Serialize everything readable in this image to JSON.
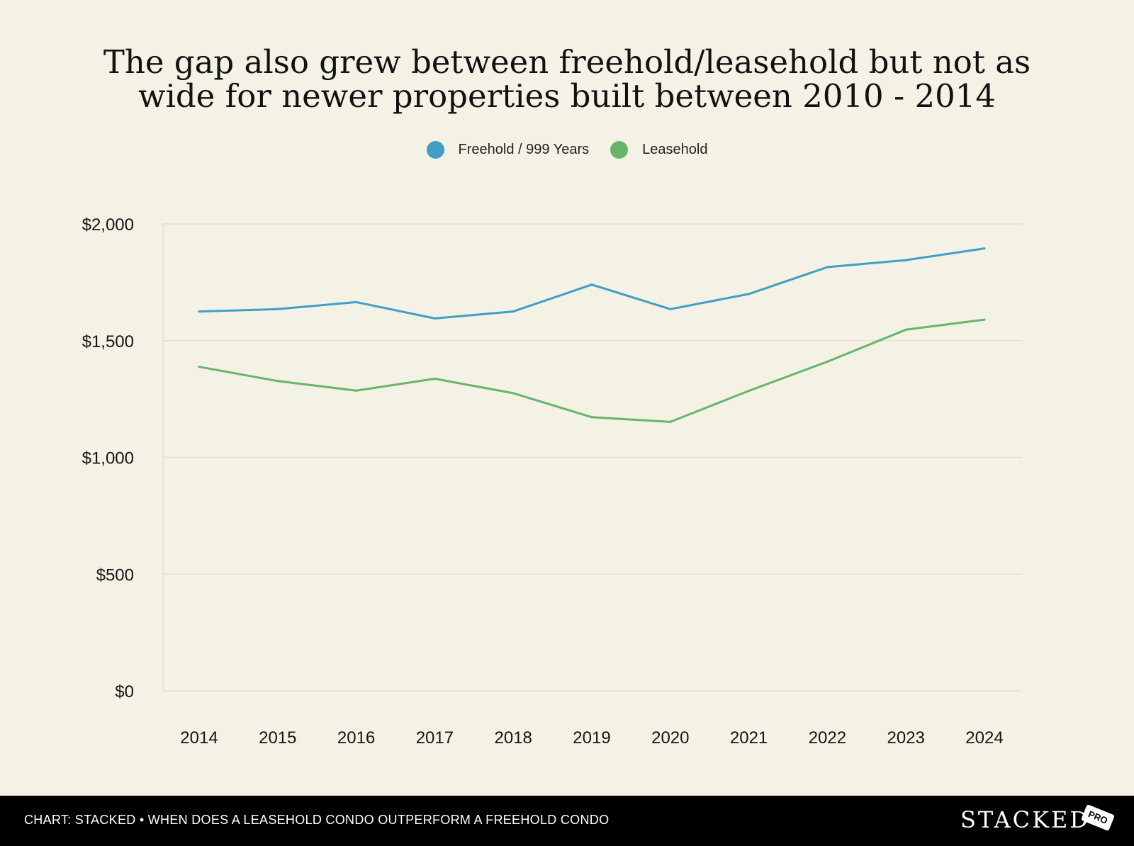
{
  "chart_data": {
    "type": "line",
    "title_lines": [
      "The gap also grew between freehold/leasehold but not as",
      "wide for newer properties built between 2010 - 2014"
    ],
    "x": [
      "2014",
      "2015",
      "2016",
      "2017",
      "2018",
      "2019",
      "2020",
      "2021",
      "2022",
      "2023",
      "2024"
    ],
    "series": [
      {
        "name": "Freehold / 999 Years",
        "color": "#3f9fc5",
        "values": [
          1625,
          1635,
          1665,
          1595,
          1625,
          1740,
          1635,
          1700,
          1815,
          1845,
          1895
        ]
      },
      {
        "name": "Leasehold",
        "color": "#66b56d",
        "values": [
          1388,
          1327,
          1286,
          1337,
          1275,
          1172,
          1152,
          1285,
          1410,
          1547,
          1590
        ]
      }
    ],
    "y_ticks": [
      {
        "value": 0,
        "label": "$0"
      },
      {
        "value": 500,
        "label": "$500"
      },
      {
        "value": 1000,
        "label": "$1,000"
      },
      {
        "value": 1500,
        "label": "$1,500"
      },
      {
        "value": 2000,
        "label": "$2,000"
      }
    ],
    "ylim": [
      0,
      2000
    ],
    "grid": true,
    "legend_position": "top-center"
  },
  "footer": {
    "caption": "CHART: STACKED • WHEN DOES A LEASEHOLD CONDO OUTPERFORM A FREEHOLD CONDO",
    "brand": "STACKED",
    "badge": "PRO"
  }
}
